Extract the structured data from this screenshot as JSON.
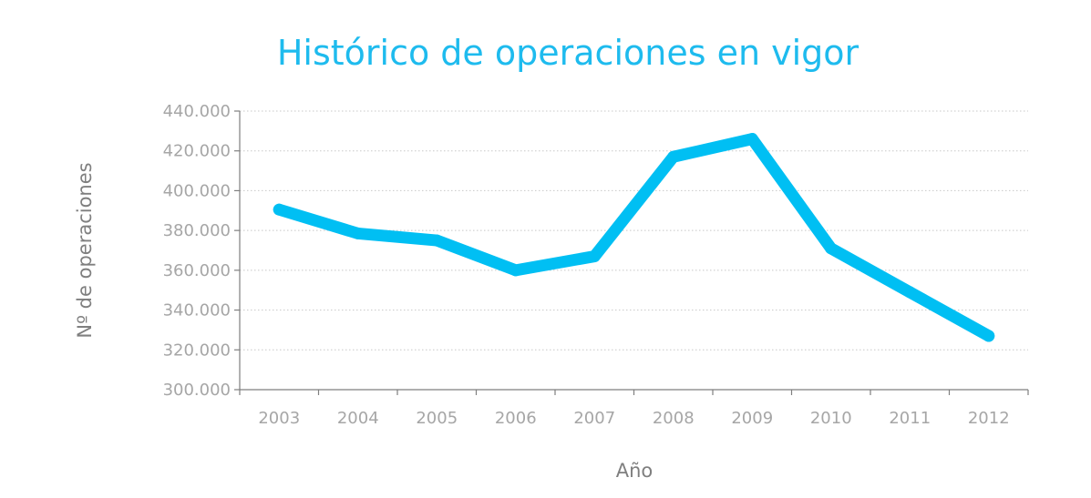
{
  "chart_data": {
    "type": "line",
    "title": "Histórico de operaciones en vigor",
    "xlabel": "Año",
    "ylabel": "Nº de operaciones",
    "categories": [
      "2003",
      "2004",
      "2005",
      "2006",
      "2007",
      "2008",
      "2009",
      "2010",
      "2011",
      "2012"
    ],
    "series": [
      {
        "name": "",
        "values": [
          390500,
          378500,
          375000,
          360000,
          367000,
          417000,
          426000,
          371000,
          349000,
          327000
        ]
      }
    ],
    "ylim": [
      300000,
      440000
    ],
    "yticks": [
      300000,
      320000,
      340000,
      360000,
      380000,
      400000,
      420000,
      440000
    ],
    "ytick_labels": [
      "300.000",
      "320.000",
      "340.000",
      "360.000",
      "380.000",
      "400.000",
      "420.000",
      "440.000"
    ],
    "grid": true,
    "grid_style": "dotted horizontal",
    "legend": "none",
    "colors": {
      "title": "#1ebbee",
      "line": "#00bff3",
      "axis_text": "#a6a6a6",
      "axis_title": "#7f7f7f",
      "axis_line": "#7f7f7f",
      "grid": "#c8c8c8"
    }
  }
}
